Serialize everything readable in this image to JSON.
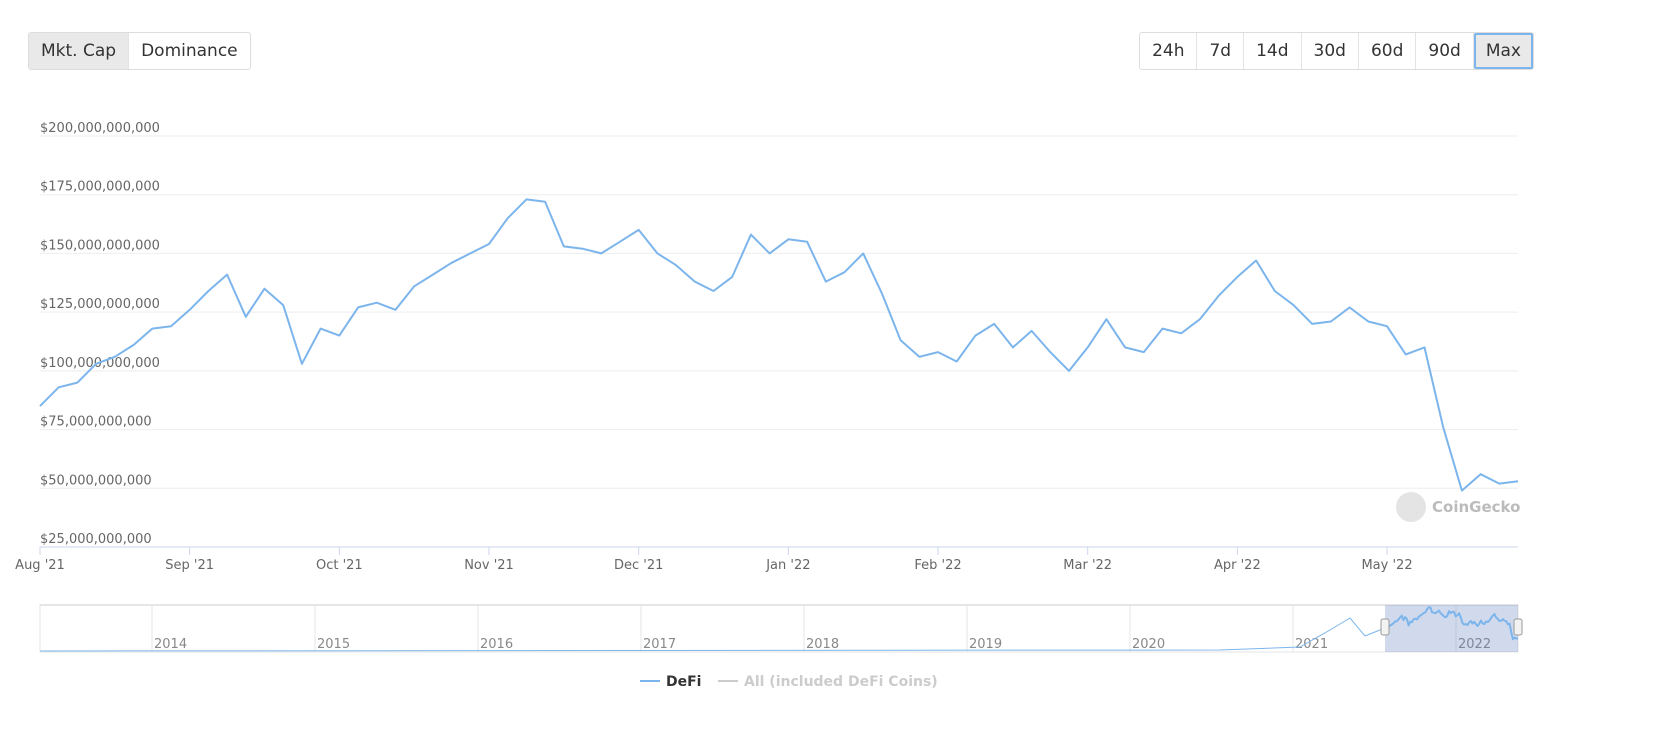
{
  "controls": {
    "metric_tabs": [
      "Mkt. Cap",
      "Dominance"
    ],
    "active_tab": 0,
    "ranges": [
      "24h",
      "7d",
      "14d",
      "30d",
      "60d",
      "90d",
      "Max"
    ],
    "active_range": 6
  },
  "chart_data": {
    "type": "line",
    "categories": [
      "Aug '21",
      null,
      null,
      null,
      null,
      null,
      null,
      null,
      "Sep '21",
      null,
      null,
      null,
      null,
      null,
      null,
      null,
      "Oct '21",
      null,
      null,
      null,
      null,
      null,
      null,
      null,
      "Nov '21",
      null,
      null,
      null,
      null,
      null,
      null,
      null,
      "Dec '21",
      null,
      null,
      null,
      null,
      null,
      null,
      null,
      "Jan '22",
      null,
      null,
      null,
      null,
      null,
      null,
      null,
      "Feb '22",
      null,
      null,
      null,
      null,
      null,
      null,
      null,
      "Mar '22",
      null,
      null,
      null,
      null,
      null,
      null,
      null,
      "Apr '22",
      null,
      null,
      null,
      null,
      null,
      null,
      null,
      "May '22",
      null,
      null,
      null,
      null,
      null,
      null,
      null
    ],
    "series": [
      {
        "name": "DeFi",
        "color": "#7cb5ec",
        "values": [
          85000000000,
          93000000000,
          95000000000,
          103000000000,
          106000000000,
          111000000000,
          118000000000,
          119000000000,
          126000000000,
          134000000000,
          141000000000,
          123000000000,
          135000000000,
          128000000000,
          103000000000,
          118000000000,
          115000000000,
          127000000000,
          129000000000,
          126000000000,
          136000000000,
          141000000000,
          146000000000,
          150000000000,
          154000000000,
          165000000000,
          173000000000,
          172000000000,
          153000000000,
          152000000000,
          150000000000,
          155000000000,
          160000000000,
          150000000000,
          145000000000,
          138000000000,
          134000000000,
          140000000000,
          158000000000,
          150000000000,
          156000000000,
          155000000000,
          138000000000,
          142000000000,
          150000000000,
          133000000000,
          113000000000,
          106000000000,
          108000000000,
          104000000000,
          115000000000,
          120000000000,
          110000000000,
          117000000000,
          108000000000,
          100000000000,
          110000000000,
          122000000000,
          110000000000,
          108000000000,
          118000000000,
          116000000000,
          122000000000,
          132000000000,
          140000000000,
          147000000000,
          134000000000,
          128000000000,
          120000000000,
          121000000000,
          127000000000,
          121000000000,
          119000000000,
          107000000000,
          110000000000,
          76000000000,
          49000000000,
          56000000000,
          52000000000,
          53000000000
        ]
      }
    ],
    "hidden_series": [
      {
        "name": "All (included DeFi Coins)",
        "color": "#cccccc"
      }
    ],
    "ylim": [
      25000000000,
      200000000000
    ],
    "yticks": [
      {
        "value": 25000000000,
        "label": "$25,000,000,000"
      },
      {
        "value": 50000000000,
        "label": "$50,000,000,000"
      },
      {
        "value": 75000000000,
        "label": "$75,000,000,000"
      },
      {
        "value": 100000000000,
        "label": "$100,000,000,000"
      },
      {
        "value": 125000000000,
        "label": "$125,000,000,000"
      },
      {
        "value": 150000000000,
        "label": "$150,000,000,000"
      },
      {
        "value": 175000000000,
        "label": "$175,000,000,000"
      },
      {
        "value": 200000000000,
        "label": "$200,000,000,000"
      }
    ],
    "grid": true
  },
  "navigator": {
    "years": [
      "2014",
      "2015",
      "2016",
      "2017",
      "2018",
      "2019",
      "2020",
      "2021",
      "2022"
    ]
  },
  "watermark": "CoinGecko"
}
